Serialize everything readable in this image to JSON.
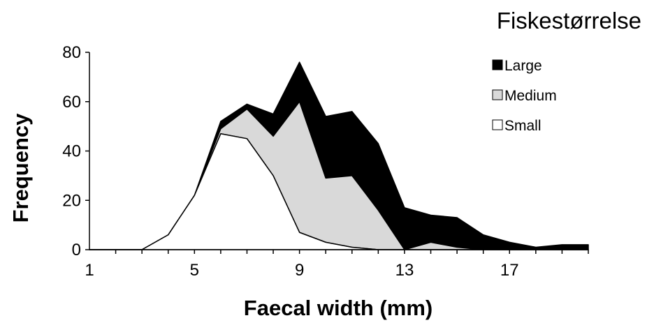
{
  "chart_data": {
    "type": "area",
    "stacked": true,
    "x": [
      0,
      1,
      2,
      3,
      4,
      5,
      6,
      7,
      8,
      9,
      10,
      11,
      12,
      13,
      14,
      15,
      16,
      17,
      18,
      19
    ],
    "series": [
      {
        "name": "Small",
        "color": "#ffffff",
        "values": [
          0,
          0,
          0,
          6,
          22,
          47,
          45,
          30,
          7,
          3,
          1,
          0,
          0,
          0,
          0,
          0,
          0,
          0,
          0,
          0
        ]
      },
      {
        "name": "Medium",
        "color": "#d9d9d9",
        "values": [
          0,
          0,
          0,
          0,
          0,
          2,
          12,
          16,
          53,
          26,
          29,
          16,
          0,
          3,
          1,
          0,
          0,
          0,
          0,
          0
        ]
      },
      {
        "name": "Large",
        "color": "#000000",
        "values": [
          0,
          0,
          0,
          0,
          0,
          3,
          2,
          9,
          16,
          25,
          26,
          27,
          17,
          11,
          12,
          6,
          3,
          1,
          2,
          2
        ]
      }
    ],
    "xlabel": "Faecal width (mm)",
    "ylabel": "Frequency",
    "xlim": [
      0,
      19
    ],
    "ylim": [
      0,
      80
    ],
    "xticks": [
      1,
      5,
      9,
      13,
      17
    ],
    "yticks": [
      0,
      20,
      40,
      60,
      80
    ],
    "grid": false,
    "legend": {
      "title": "Fiskestørrelse",
      "placement": "top-right",
      "order": [
        "Large",
        "Medium",
        "Small"
      ]
    }
  }
}
